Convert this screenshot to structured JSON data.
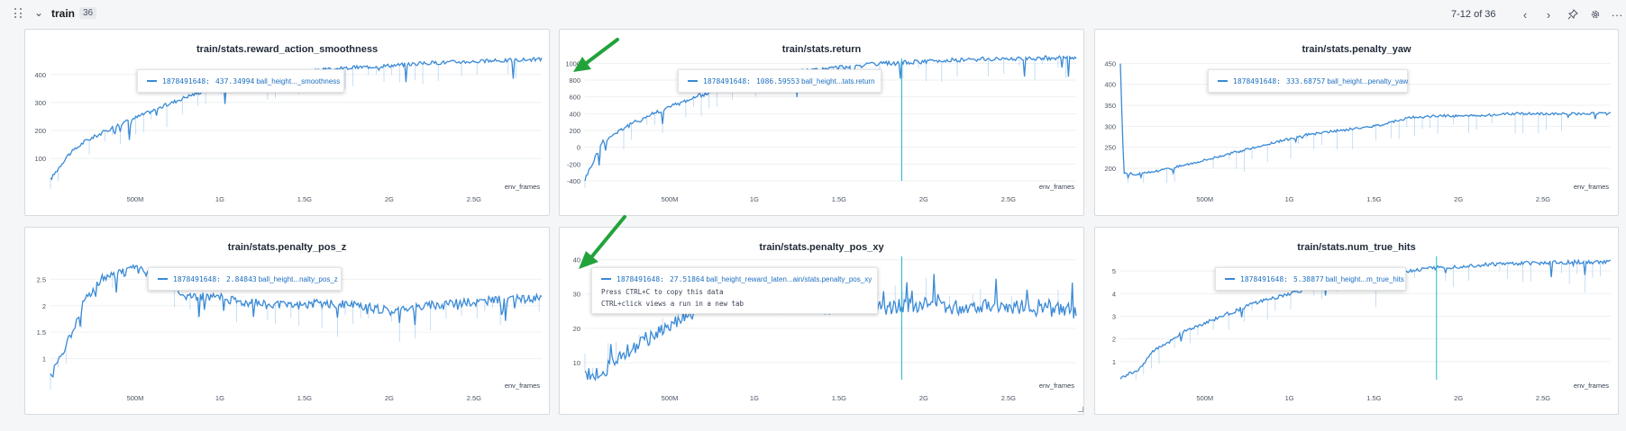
{
  "section": {
    "title": "train",
    "count": "36",
    "pager": "7-12 of 36"
  },
  "toolbar": {
    "prev_icon": "chevron-left",
    "next_icon": "chevron-right",
    "pin_icon": "pin",
    "settings_icon": "gear",
    "more_icon": "ellipsis"
  },
  "colors": {
    "line": "#3a8ad6",
    "line_light": "#b9d6f2",
    "arrow": "#22a33a",
    "cursor": "#1fb6c8"
  },
  "panels": [
    {
      "title": "train/stats.reward_action_smoothness",
      "tooltip": {
        "run": "1878491648:",
        "value": "437.34994",
        "series": "ball_height..._smoothness"
      },
      "xaxis_label": "env_frames",
      "xticks": [
        "500M",
        "1G",
        "1.5G",
        "2G",
        "2.5G"
      ],
      "yticks": [
        "100",
        "200",
        "300",
        "400"
      ],
      "show_cursor": false
    },
    {
      "title": "train/stats.return",
      "tooltip": {
        "run": "1878491648:",
        "value": "1086.59553",
        "series": "ball_height...tats.return"
      },
      "xaxis_label": "env_frames",
      "xticks": [
        "500M",
        "1G",
        "1.5G",
        "2G",
        "2.5G"
      ],
      "yticks": [
        "-400",
        "-200",
        "0",
        "200",
        "400",
        "600",
        "800",
        "1000"
      ],
      "show_cursor": true
    },
    {
      "title": "train/stats.penalty_yaw",
      "tooltip": {
        "run": "1878491648:",
        "value": "333.68757",
        "series": "ball_height...penalty_yaw"
      },
      "xaxis_label": "env_frames",
      "xticks": [
        "500M",
        "1G",
        "1.5G",
        "2G",
        "2.5G"
      ],
      "yticks": [
        "200",
        "250",
        "300",
        "350",
        "400",
        "450"
      ],
      "show_cursor": false
    },
    {
      "title": "train/stats.penalty_pos_z",
      "tooltip": {
        "run": "1878491648:",
        "value": "2.84843",
        "series": "ball_height...nalty_pos_z"
      },
      "xaxis_label": "env_frames",
      "xticks": [
        "500M",
        "1G",
        "1.5G",
        "2G",
        "2.5G"
      ],
      "yticks": [
        "1",
        "1.5",
        "2",
        "2.5"
      ],
      "show_cursor": false
    },
    {
      "title": "train/stats.penalty_pos_xy",
      "tooltip": {
        "run": "1878491648:",
        "value": "27.51864",
        "series": "ball_height_reward_laten...ain/stats.penalty_pos_xy",
        "note1": "Press CTRL+C to copy this data",
        "note2": "CTRL+click views a run in a new tab"
      },
      "xaxis_label": "env_frames",
      "xticks": [
        "500M",
        "1G",
        "1.5G",
        "2G",
        "2.5G"
      ],
      "yticks": [
        "10",
        "20",
        "30",
        "40"
      ],
      "show_cursor": true
    },
    {
      "title": "train/stats.num_true_hits",
      "tooltip": {
        "run": "1878491648:",
        "value": "5.38877",
        "series": "ball_height...m_true_hits"
      },
      "xaxis_label": "env_frames",
      "xticks": [
        "500M",
        "1G",
        "1.5G",
        "2G",
        "2.5G"
      ],
      "yticks": [
        "1",
        "2",
        "3",
        "4",
        "5"
      ],
      "show_cursor": true
    }
  ],
  "chart_data": [
    {
      "type": "line",
      "title": "train/stats.reward_action_smoothness",
      "xlabel": "env_frames",
      "ylabel": "",
      "xlim": [
        0,
        2900000000
      ],
      "ylim": [
        20,
        470
      ],
      "series": [
        {
          "name": "1878491648",
          "x": [
            0,
            100000000,
            200000000,
            400000000,
            600000000,
            800000000,
            1000000000,
            1200000000,
            1400000000,
            1600000000,
            1800000000,
            2000000000,
            2200000000,
            2400000000,
            2600000000,
            2900000000
          ],
          "y": [
            25,
            110,
            160,
            220,
            270,
            320,
            360,
            385,
            400,
            415,
            425,
            432,
            440,
            445,
            448,
            455
          ]
        }
      ]
    },
    {
      "type": "line",
      "title": "train/stats.return",
      "xlabel": "env_frames",
      "ylabel": "",
      "xlim": [
        0,
        2900000000
      ],
      "ylim": [
        -400,
        1100
      ],
      "series": [
        {
          "name": "1878491648",
          "x": [
            0,
            100000000,
            200000000,
            400000000,
            600000000,
            800000000,
            1000000000,
            1200000000,
            1400000000,
            1600000000,
            1800000000,
            2000000000,
            2200000000,
            2400000000,
            2600000000,
            2900000000
          ],
          "y": [
            -380,
            50,
            200,
            400,
            560,
            700,
            800,
            880,
            930,
            970,
            1000,
            1020,
            1040,
            1050,
            1060,
            1070
          ]
        }
      ]
    },
    {
      "type": "line",
      "title": "train/stats.penalty_yaw",
      "xlabel": "env_frames",
      "ylabel": "",
      "xlim": [
        0,
        2900000000
      ],
      "ylim": [
        170,
        470
      ],
      "series": [
        {
          "name": "1878491648",
          "x": [
            0,
            20000000,
            100000000,
            300000000,
            500000000,
            700000000,
            900000000,
            1100000000,
            1300000000,
            1500000000,
            1700000000,
            1900000000,
            2100000000,
            2300000000,
            2500000000,
            2700000000,
            2900000000
          ],
          "y": [
            450,
            190,
            185,
            200,
            220,
            240,
            260,
            280,
            290,
            300,
            320,
            325,
            325,
            330,
            330,
            330,
            330
          ]
        }
      ]
    },
    {
      "type": "line",
      "title": "train/stats.penalty_pos_z",
      "xlabel": "env_frames",
      "ylabel": "",
      "xlim": [
        0,
        2900000000
      ],
      "ylim": [
        0.6,
        3.0
      ],
      "series": [
        {
          "name": "1878491648",
          "x": [
            0,
            100000000,
            200000000,
            300000000,
            400000000,
            500000000,
            600000000,
            800000000,
            1000000000,
            1200000000,
            1400000000,
            1600000000,
            1800000000,
            2000000000,
            2200000000,
            2400000000,
            2600000000,
            2900000000
          ],
          "y": [
            0.7,
            1.3,
            2.1,
            2.5,
            2.6,
            2.7,
            2.6,
            2.2,
            2.15,
            2.05,
            2.0,
            2.05,
            2.0,
            1.9,
            2.0,
            2.05,
            2.1,
            2.15
          ]
        }
      ]
    },
    {
      "type": "line",
      "title": "train/stats.penalty_pos_xy",
      "xlabel": "env_frames",
      "ylabel": "",
      "xlim": [
        0,
        2900000000
      ],
      "ylim": [
        5,
        42
      ],
      "series": [
        {
          "name": "1878491648",
          "x": [
            0,
            100000000,
            200000000,
            400000000,
            600000000,
            800000000,
            1000000000,
            1200000000,
            1400000000,
            1600000000,
            1800000000,
            2000000000,
            2200000000,
            2400000000,
            2600000000,
            2900000000
          ],
          "y": [
            6,
            7,
            12,
            18,
            24,
            28,
            27,
            26,
            26,
            27,
            26,
            27,
            26,
            27,
            26,
            25
          ]
        }
      ]
    },
    {
      "type": "line",
      "title": "train/stats.num_true_hits",
      "xlabel": "env_frames",
      "ylabel": "",
      "xlim": [
        0,
        2900000000
      ],
      "ylim": [
        0.2,
        5.8
      ],
      "series": [
        {
          "name": "1878491648",
          "x": [
            0,
            100000000,
            200000000,
            400000000,
            600000000,
            800000000,
            1000000000,
            1200000000,
            1400000000,
            1600000000,
            1800000000,
            2000000000,
            2200000000,
            2400000000,
            2600000000,
            2900000000
          ],
          "y": [
            0.3,
            0.6,
            1.5,
            2.4,
            3.0,
            3.6,
            4.0,
            4.4,
            4.7,
            4.9,
            5.1,
            5.2,
            5.3,
            5.35,
            5.38,
            5.4
          ]
        }
      ]
    }
  ]
}
